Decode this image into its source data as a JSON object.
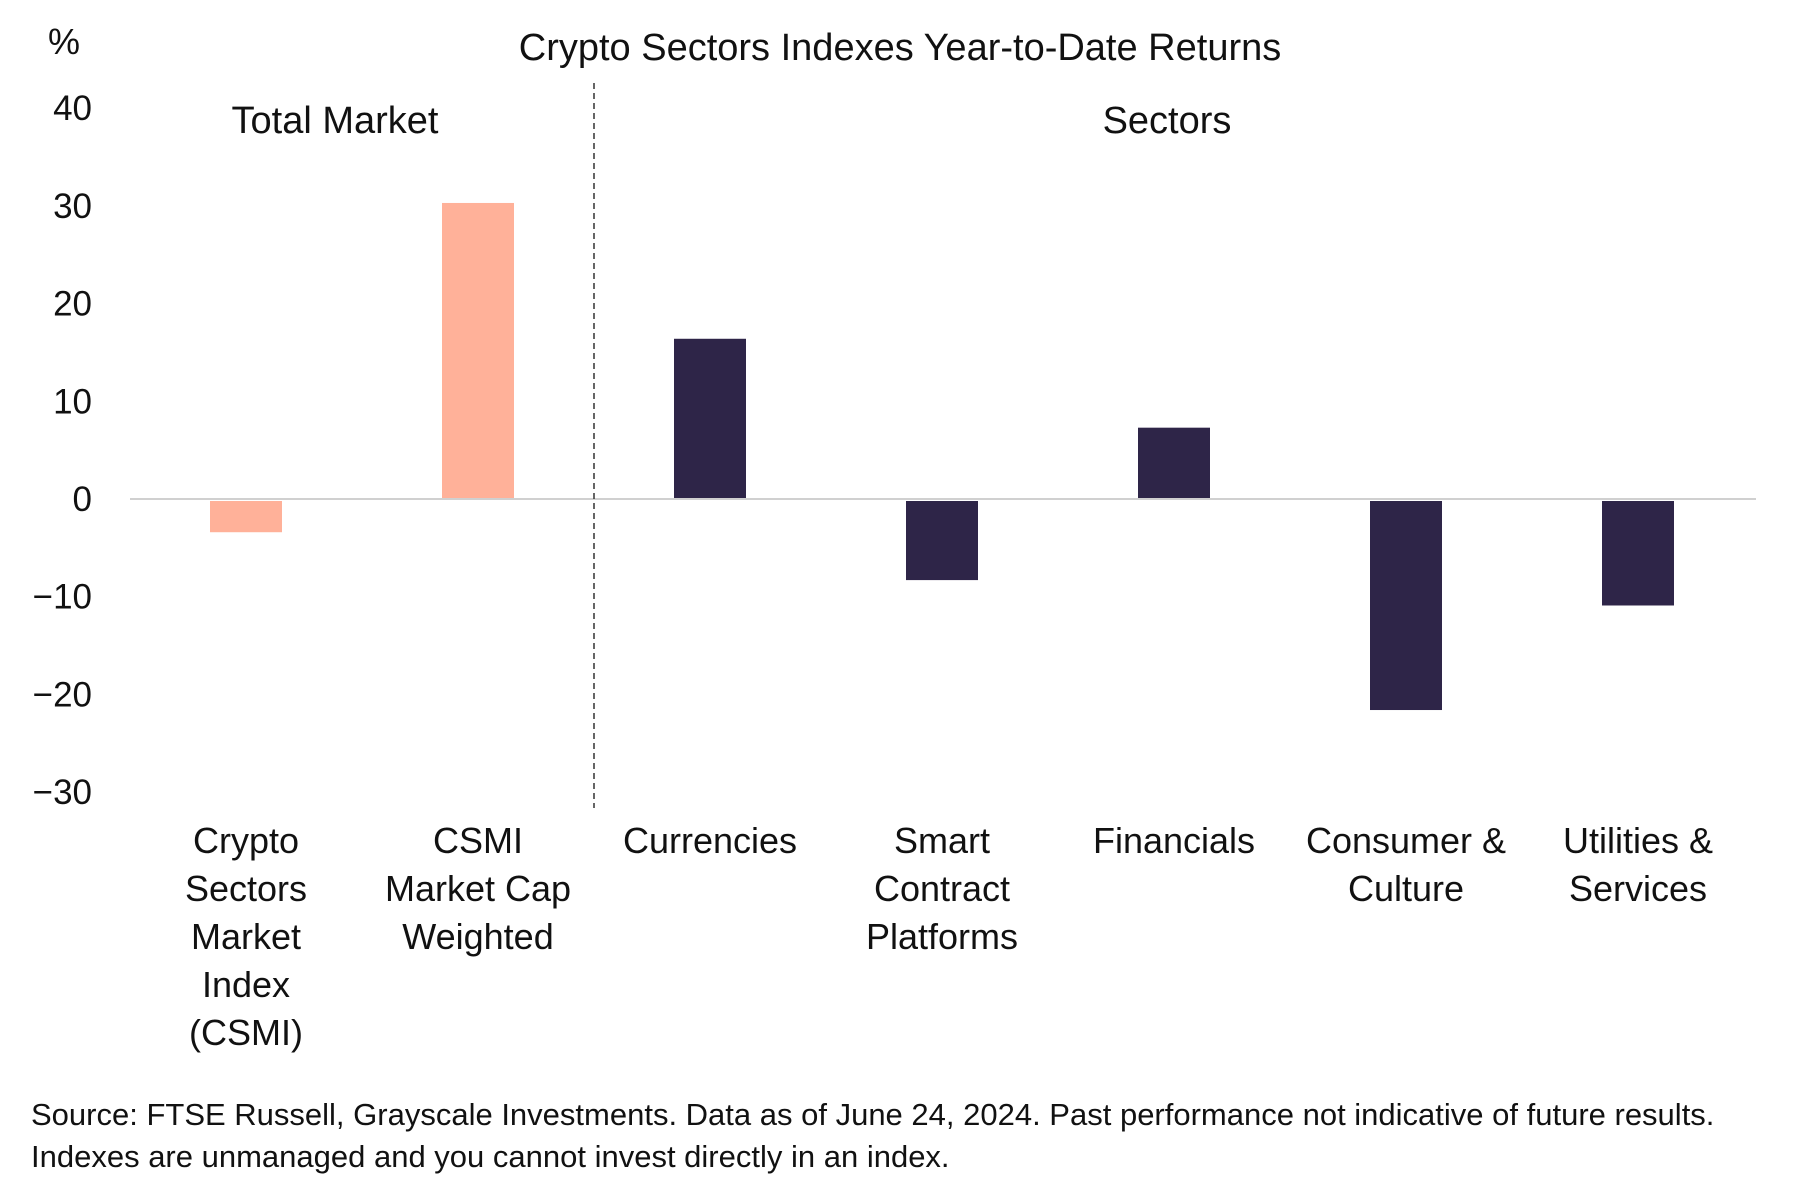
{
  "chart_data": {
    "type": "bar",
    "title": "Crypto Sectors Indexes Year-to-Date Returns",
    "ylabel": "%",
    "xlabel": "",
    "ylim": [
      -30,
      40
    ],
    "yticks": [
      40,
      30,
      20,
      10,
      0,
      -10,
      -20,
      -30
    ],
    "grid": false,
    "groups": [
      {
        "label": "Total Market",
        "categories": [
          0,
          1
        ]
      },
      {
        "label": "Sectors",
        "categories": [
          2,
          3,
          4,
          5,
          6
        ]
      }
    ],
    "categories": [
      [
        "Crypto",
        "Sectors",
        "Market",
        "Index",
        "(CSMI)"
      ],
      [
        "CSMI",
        "Market Cap",
        "Weighted"
      ],
      [
        "Currencies"
      ],
      [
        "Smart",
        "Contract",
        "Platforms"
      ],
      [
        "Financials"
      ],
      [
        "Consumer &",
        "Culture"
      ],
      [
        "Utilities &",
        "Services"
      ]
    ],
    "values": [
      -3.4,
      30.3,
      16.4,
      -8.3,
      7.3,
      -21.6,
      -10.9
    ],
    "colors": [
      "#FFB199",
      "#FFB199",
      "#2E2548",
      "#2E2548",
      "#2E2548",
      "#2E2548",
      "#2E2548"
    ]
  },
  "source": "Source: FTSE Russell, Grayscale Investments. Data as of June 24, 2024. Past performance not indicative of future results. Indexes are unmanaged and you cannot invest directly in an index."
}
